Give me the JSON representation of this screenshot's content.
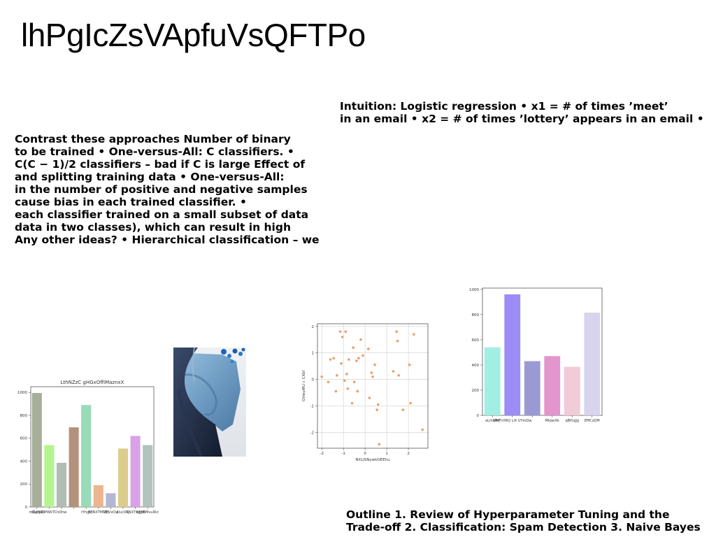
{
  "title": "lhPgIcZsVApfuVsQFTPo",
  "intuition": {
    "lines": [
      "Intuition: Logistic regression • x1 = # of times ’meet’",
      "in an email • x2 = # of times ’lottery’ appears in an email •"
    ]
  },
  "contrast": {
    "lines": [
      "Contrast these approaches Number of binary",
      "to be trained • One-versus-All: C classifiers. •",
      "C(C − 1)/2 classifiers – bad if C is large Effect of",
      "and splitting training data • One-versus-All:",
      "in the number of positive and negative samples",
      "cause bias in each trained classifier. •",
      "each classifier trained on a small subset of data",
      "data in two classes), which can result in high",
      "Any other ideas? • Hierarchical classification – we"
    ]
  },
  "outline": {
    "lines": [
      "Outline 1. Review of Hyperparameter Tuning and the",
      "Trade-off 2. Classification: Spam Detection 3. Naive Bayes"
    ]
  },
  "photo": {
    "name": "blue-sleeve-photo"
  },
  "chart_data": [
    {
      "type": "bar",
      "title": "LthNZzC gHGxOffIMaznxX",
      "xlabel": "",
      "ylabel": "",
      "ylim": [
        0,
        1050
      ],
      "yticks": [
        0,
        200,
        400,
        600,
        800,
        1000
      ],
      "categories": [
        "mQdQZo",
        "DuJq",
        "hDPWk",
        "TChDhw",
        "tYhgk",
        "EBNXTMUEj",
        "SlFVxOyi",
        "kIucDXJ",
        "CNXTvggB",
        "NEYBMvuIRcl"
      ],
      "category_labels": [
        "mQdQZo",
        "DuJqoDPWkTChDhw",
        "",
        "",
        "tYhgk",
        "EBNXTMUEj",
        "SlFVxOyi",
        "kIucDXJ",
        "CNXTvggB",
        "NEYBMvuIRcl"
      ],
      "values": [
        995,
        540,
        385,
        695,
        890,
        190,
        120,
        510,
        620,
        540
      ],
      "colors": [
        "#a7ae99",
        "#b4f58f",
        "#b1bcb2",
        "#b3917a",
        "#97dbb9",
        "#ecb58f",
        "#b5b6d3",
        "#dccd8c",
        "#d9a2e6",
        "#b1c3bc"
      ]
    },
    {
      "type": "scatter",
      "title": "",
      "xlabel": "NXLISNywkOEEhu",
      "ylabel": "GVwyiRU c CXbl",
      "xlim": [
        -2.2,
        2.9
      ],
      "ylim": [
        -2.6,
        2.1
      ],
      "xticks": [
        -2,
        -1,
        0,
        1,
        2
      ],
      "yticks": [
        -2,
        -1,
        0,
        1,
        2
      ],
      "color": "#e8a06a",
      "x": [
        -2.0,
        -1.7,
        -1.6,
        -1.45,
        -1.35,
        -1.3,
        -1.15,
        -1.1,
        -1.05,
        -0.95,
        -0.9,
        -0.85,
        -0.8,
        -0.75,
        -0.6,
        -0.55,
        -0.5,
        -0.4,
        -0.35,
        -0.3,
        -0.2,
        -0.1,
        0.15,
        0.2,
        0.3,
        0.35,
        0.45,
        0.55,
        0.6,
        0.65,
        1.3,
        1.45,
        1.5,
        1.55,
        1.75,
        2.05,
        2.1,
        2.25,
        2.65
      ],
      "y": [
        0.1,
        -0.1,
        0.75,
        0.8,
        -0.45,
        0.15,
        1.8,
        0.6,
        1.6,
        -0.05,
        1.8,
        0.2,
        -0.35,
        0.75,
        -0.9,
        1.2,
        -0.1,
        0.7,
        -0.45,
        0.8,
        1.5,
        0.9,
        1.15,
        -0.7,
        0.25,
        0.1,
        0.55,
        -1.15,
        -0.95,
        -2.45,
        0.3,
        1.8,
        1.45,
        0.15,
        -1.15,
        0.55,
        -0.9,
        1.7,
        -1.9
      ]
    },
    {
      "type": "bar",
      "title": "",
      "xlabel": "",
      "ylabel": "",
      "ylim": [
        0,
        1010
      ],
      "yticks": [
        0,
        200,
        400,
        600,
        800,
        1000
      ],
      "categories": [
        "aLmXRo",
        "UMThXRQ LiX",
        "UYmQw",
        "MkjwiXk",
        "qBHujJg",
        "EMCzQM"
      ],
      "category_labels": [
        "aLmXRo",
        "UMThXRQ LiX UYmQw",
        "",
        "MkjwiXk",
        "qBHujJg",
        "EMCzQM"
      ],
      "values": [
        540,
        960,
        430,
        470,
        385,
        815
      ],
      "colors": [
        "#a3eee2",
        "#9c8cf5",
        "#9b99d4",
        "#e395cd",
        "#f1cbd6",
        "#d8d4ee"
      ]
    }
  ]
}
